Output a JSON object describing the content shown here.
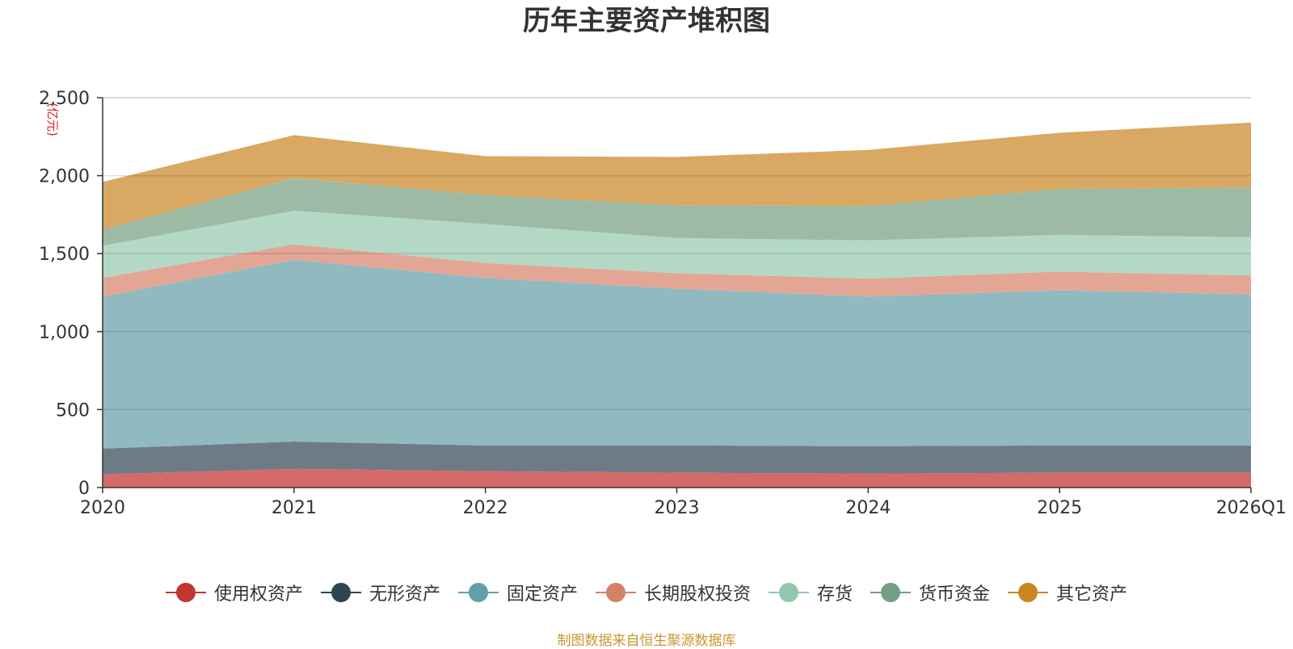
{
  "chart_data": {
    "type": "area",
    "stacked": true,
    "title": "历年主要资产堆积图",
    "ylabel": "亿元",
    "xlabel": "",
    "ylim": [
      0,
      2500
    ],
    "yticks": [
      0,
      500,
      1000,
      1500,
      2000,
      2500
    ],
    "ytick_labels": [
      "0",
      "500",
      "1,000",
      "1,500",
      "2,000",
      "2,500"
    ],
    "categories": [
      "2020",
      "2021",
      "2022",
      "2023",
      "2024",
      "2025",
      "2026Q1"
    ],
    "series": [
      {
        "name": "使用权资产",
        "color": "#c23531",
        "fill": "#d46a6a",
        "values": [
          85,
          120,
          105,
          95,
          90,
          95,
          95
        ]
      },
      {
        "name": "无形资产",
        "color": "#2f4554",
        "fill": "#6e7b85",
        "values": [
          165,
          175,
          165,
          175,
          175,
          175,
          175
        ]
      },
      {
        "name": "固定资产",
        "color": "#61a0a8",
        "fill": "#91b9c0",
        "values": [
          975,
          1165,
          1075,
          1005,
          960,
          995,
          970
        ]
      },
      {
        "name": "长期股权投资",
        "color": "#d48265",
        "fill": "#e3a695",
        "values": [
          120,
          100,
          95,
          100,
          115,
          120,
          120
        ]
      },
      {
        "name": "存货",
        "color": "#91c7ae",
        "fill": "#b3d9c6",
        "values": [
          205,
          215,
          250,
          225,
          245,
          235,
          245
        ]
      },
      {
        "name": "货币资金",
        "color": "#749f83",
        "fill": "#9dbba4",
        "values": [
          105,
          210,
          185,
          210,
          220,
          295,
          320
        ]
      },
      {
        "name": "其它资产",
        "color": "#ca8622",
        "fill": "#d9a862",
        "values": [
          305,
          275,
          250,
          310,
          360,
          360,
          415
        ]
      }
    ]
  },
  "source_note": "制图数据来自恒生聚源数据库"
}
